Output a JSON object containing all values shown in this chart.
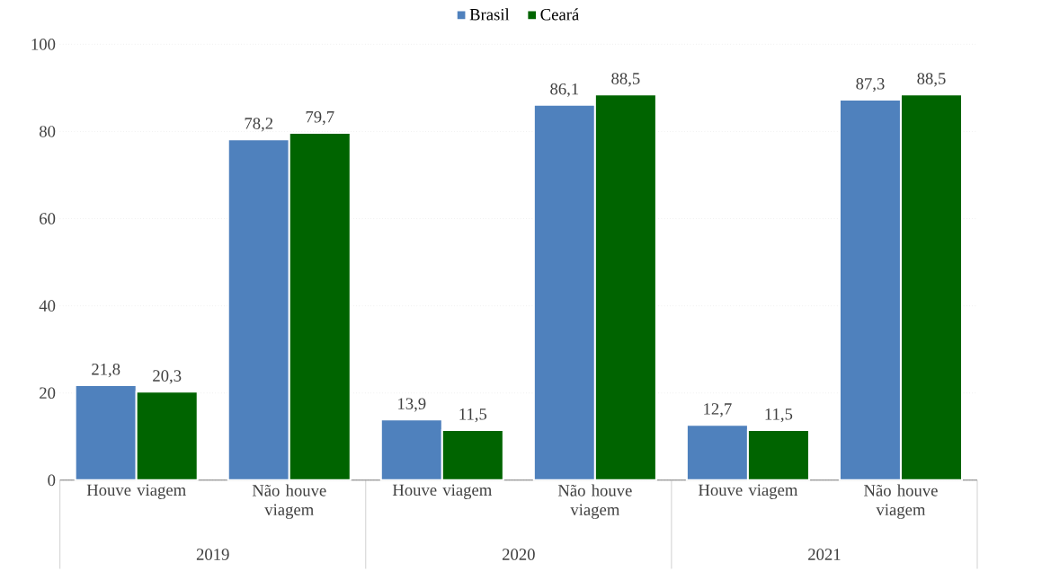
{
  "chart_data": {
    "type": "bar",
    "categories": [
      "Houve viagem",
      "Não houve viagem",
      "Houve viagem",
      "Não houve viagem",
      "Houve viagem",
      "Não houve viagem"
    ],
    "series": [
      {
        "name": "Brasil",
        "color": "#4f81bd",
        "values": [
          21.8,
          78.2,
          13.9,
          86.1,
          12.7,
          87.3
        ],
        "value_labels": [
          "21,8",
          "78,2",
          "13,9",
          "86,1",
          "12,7",
          "87,3"
        ]
      },
      {
        "name": "Ceará",
        "color": "#006400",
        "values": [
          20.3,
          79.7,
          11.5,
          88.5,
          11.5,
          88.5
        ],
        "value_labels": [
          "20,3",
          "79,7",
          "11,5",
          "88,5",
          "11,5",
          "88,5"
        ]
      }
    ],
    "annotations": [
      "2019",
      "2020",
      "2021"
    ],
    "ylim": [
      0,
      100
    ],
    "yticks": [
      0,
      20,
      40,
      60,
      80,
      100
    ],
    "grid": "y",
    "legend": "top"
  }
}
